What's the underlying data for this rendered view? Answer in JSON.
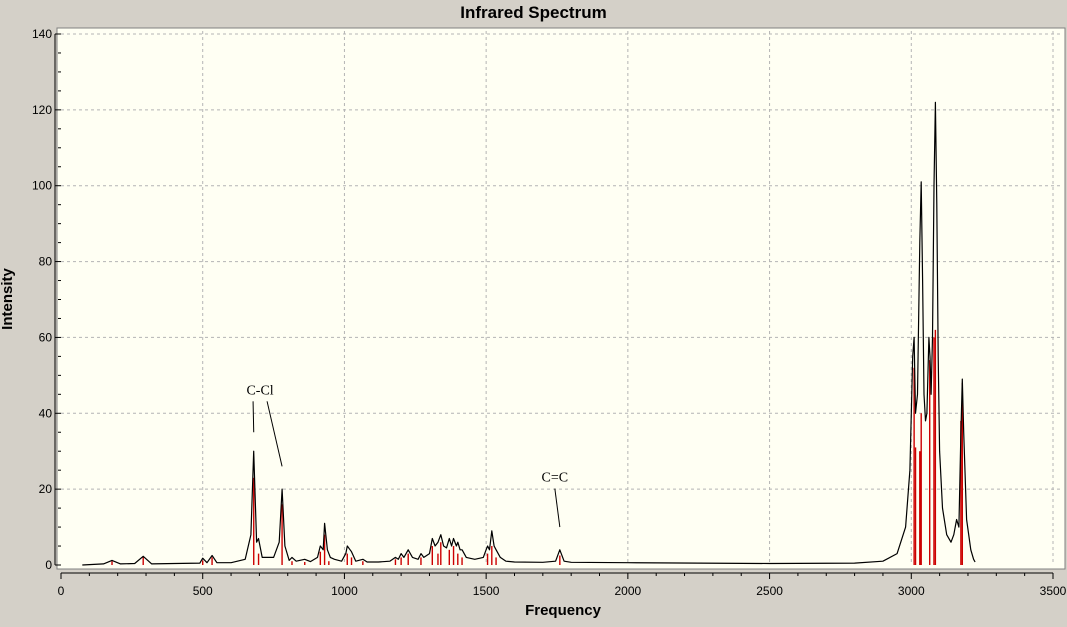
{
  "chart_data": {
    "type": "line",
    "title": "Infrared Spectrum",
    "xlabel": "Frequency",
    "ylabel": "Intensity",
    "xlim": [
      0,
      3500
    ],
    "ylim": [
      0,
      140
    ],
    "x_ticks": [
      0,
      500,
      1000,
      1500,
      2000,
      2500,
      3000,
      3500
    ],
    "y_ticks": [
      0,
      20,
      40,
      60,
      80,
      100,
      120,
      140
    ],
    "grid": true,
    "colors": {
      "background": "#fffff3",
      "frame": "#d4d0c8",
      "grid": "#b4b4b4",
      "spectrum": "#000000",
      "sticks": "#cc0000"
    },
    "series": [
      {
        "kind": "stick",
        "points": [
          [
            180,
            1.0
          ],
          [
            290,
            2.0
          ],
          [
            500,
            1.2
          ],
          [
            533,
            2.0
          ],
          [
            680,
            23.0
          ],
          [
            697,
            3.0
          ],
          [
            780,
            16.0
          ],
          [
            815,
            1.0
          ],
          [
            860,
            0.8
          ],
          [
            915,
            3.5
          ],
          [
            930,
            8.0
          ],
          [
            945,
            1.0
          ],
          [
            1010,
            3.0
          ],
          [
            1025,
            2.0
          ],
          [
            1065,
            1.0
          ],
          [
            1180,
            1.5
          ],
          [
            1200,
            2.0
          ],
          [
            1225,
            3.0
          ],
          [
            1270,
            2.0
          ],
          [
            1310,
            5.0
          ],
          [
            1330,
            3.0
          ],
          [
            1340,
            6.0
          ],
          [
            1370,
            4.0
          ],
          [
            1385,
            5.0
          ],
          [
            1400,
            3.0
          ],
          [
            1415,
            2.0
          ],
          [
            1505,
            3.0
          ],
          [
            1520,
            5.0
          ],
          [
            1535,
            2.0
          ],
          [
            1760,
            2.5
          ],
          [
            3010,
            52.0
          ],
          [
            3015,
            31.0
          ],
          [
            3030,
            30.0
          ],
          [
            3035,
            40.0
          ],
          [
            3065,
            54.0
          ],
          [
            3080,
            60.0
          ],
          [
            3085,
            62.0
          ],
          [
            3175,
            38.0
          ],
          [
            3180,
            48.0
          ]
        ]
      },
      {
        "kind": "envelope",
        "points": [
          [
            75,
            0.0
          ],
          [
            150,
            0.3
          ],
          [
            180,
            1.2
          ],
          [
            210,
            0.3
          ],
          [
            260,
            0.4
          ],
          [
            290,
            2.3
          ],
          [
            320,
            0.3
          ],
          [
            400,
            0.4
          ],
          [
            490,
            0.5
          ],
          [
            500,
            1.8
          ],
          [
            515,
            0.6
          ],
          [
            533,
            2.5
          ],
          [
            550,
            0.6
          ],
          [
            600,
            0.6
          ],
          [
            650,
            1.5
          ],
          [
            670,
            8.0
          ],
          [
            680,
            30.0
          ],
          [
            690,
            6.0
          ],
          [
            697,
            7.0
          ],
          [
            710,
            2.0
          ],
          [
            750,
            2.0
          ],
          [
            770,
            6.0
          ],
          [
            780,
            20.0
          ],
          [
            790,
            5.0
          ],
          [
            805,
            1.2
          ],
          [
            815,
            2.0
          ],
          [
            830,
            1.0
          ],
          [
            860,
            1.5
          ],
          [
            880,
            0.9
          ],
          [
            905,
            2.0
          ],
          [
            915,
            5.0
          ],
          [
            925,
            4.0
          ],
          [
            930,
            11.0
          ],
          [
            940,
            4.0
          ],
          [
            950,
            2.0
          ],
          [
            965,
            1.5
          ],
          [
            990,
            1.0
          ],
          [
            1005,
            3.0
          ],
          [
            1010,
            5.0
          ],
          [
            1020,
            4.0
          ],
          [
            1025,
            3.5
          ],
          [
            1040,
            1.0
          ],
          [
            1065,
            1.5
          ],
          [
            1080,
            0.8
          ],
          [
            1120,
            0.8
          ],
          [
            1160,
            1.0
          ],
          [
            1180,
            2.0
          ],
          [
            1190,
            1.5
          ],
          [
            1200,
            3.0
          ],
          [
            1210,
            2.0
          ],
          [
            1225,
            4.0
          ],
          [
            1240,
            2.0
          ],
          [
            1260,
            1.5
          ],
          [
            1270,
            3.0
          ],
          [
            1280,
            2.0
          ],
          [
            1300,
            3.0
          ],
          [
            1310,
            7.0
          ],
          [
            1320,
            5.0
          ],
          [
            1330,
            6.0
          ],
          [
            1340,
            8.0
          ],
          [
            1350,
            5.0
          ],
          [
            1360,
            4.5
          ],
          [
            1370,
            7.0
          ],
          [
            1378,
            5.0
          ],
          [
            1385,
            7.0
          ],
          [
            1395,
            5.0
          ],
          [
            1400,
            6.0
          ],
          [
            1408,
            4.0
          ],
          [
            1415,
            4.0
          ],
          [
            1430,
            2.0
          ],
          [
            1460,
            1.5
          ],
          [
            1490,
            2.0
          ],
          [
            1500,
            4.0
          ],
          [
            1505,
            5.0
          ],
          [
            1512,
            4.0
          ],
          [
            1520,
            9.0
          ],
          [
            1528,
            5.0
          ],
          [
            1535,
            4.0
          ],
          [
            1550,
            2.0
          ],
          [
            1570,
            1.0
          ],
          [
            1600,
            0.8
          ],
          [
            1700,
            0.7
          ],
          [
            1745,
            1.0
          ],
          [
            1760,
            4.0
          ],
          [
            1775,
            1.0
          ],
          [
            1800,
            0.7
          ],
          [
            2000,
            0.6
          ],
          [
            2500,
            0.4
          ],
          [
            2800,
            0.5
          ],
          [
            2900,
            1.0
          ],
          [
            2950,
            3.0
          ],
          [
            2980,
            10.0
          ],
          [
            2995,
            25.0
          ],
          [
            3005,
            55.0
          ],
          [
            3010,
            60.0
          ],
          [
            3015,
            40.0
          ],
          [
            3022,
            45.0
          ],
          [
            3030,
            85.0
          ],
          [
            3035,
            101.0
          ],
          [
            3040,
            75.0
          ],
          [
            3045,
            45.0
          ],
          [
            3050,
            38.0
          ],
          [
            3055,
            40.0
          ],
          [
            3062,
            60.0
          ],
          [
            3066,
            55.0
          ],
          [
            3070,
            45.0
          ],
          [
            3075,
            60.0
          ],
          [
            3080,
            100.0
          ],
          [
            3085,
            122.0
          ],
          [
            3090,
            95.0
          ],
          [
            3095,
            55.0
          ],
          [
            3100,
            30.0
          ],
          [
            3110,
            15.0
          ],
          [
            3125,
            8.0
          ],
          [
            3140,
            6.0
          ],
          [
            3150,
            8.0
          ],
          [
            3160,
            12.0
          ],
          [
            3168,
            10.0
          ],
          [
            3175,
            35.0
          ],
          [
            3180,
            49.0
          ],
          [
            3185,
            35.0
          ],
          [
            3195,
            12.0
          ],
          [
            3210,
            4.0
          ],
          [
            3220,
            1.5
          ],
          [
            3225,
            0.8
          ]
        ]
      }
    ],
    "annotations": [
      {
        "text": "C-Cl",
        "label_at": [
          720,
          45
        ],
        "targets": [
          [
            680,
            35
          ],
          [
            780,
            26
          ]
        ]
      },
      {
        "text": "C=C",
        "label_at": [
          1760,
          22
        ],
        "targets": [
          [
            1760,
            10
          ]
        ]
      }
    ]
  }
}
